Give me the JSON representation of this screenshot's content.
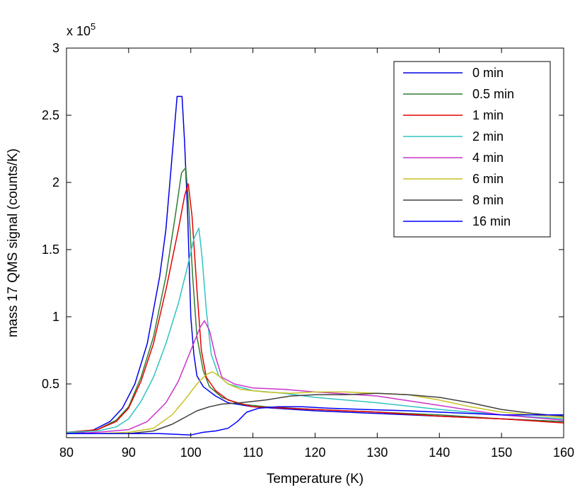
{
  "chart_data": {
    "type": "line",
    "xlabel": "Temperature (K)",
    "ylabel": "mass 17 QMS signal (counts/K)",
    "y_multiplier": {
      "prefix": "x 10",
      "exponent": "5"
    },
    "xlim": [
      80,
      160
    ],
    "ylim": [
      0.1,
      3.0
    ],
    "x_ticks": [
      80,
      90,
      100,
      110,
      120,
      130,
      140,
      150,
      160
    ],
    "y_ticks": [
      0.5,
      1,
      1.5,
      2,
      2.5,
      3
    ],
    "y_tick_labels": [
      "0.5",
      "1",
      "1.5",
      "2",
      "2.5",
      "3"
    ],
    "grid": false,
    "legend_position": "top-right",
    "series": [
      {
        "name": "0 min",
        "color": "#0000e6",
        "points": [
          [
            80,
            0.13
          ],
          [
            84,
            0.15
          ],
          [
            87,
            0.22
          ],
          [
            89,
            0.32
          ],
          [
            91,
            0.5
          ],
          [
            93,
            0.8
          ],
          [
            95,
            1.3
          ],
          [
            96,
            1.65
          ],
          [
            97,
            2.2
          ],
          [
            97.8,
            2.64
          ],
          [
            98.6,
            2.64
          ],
          [
            99,
            2.3
          ],
          [
            99.5,
            1.75
          ],
          [
            100,
            1.0
          ],
          [
            100.5,
            0.72
          ],
          [
            101,
            0.56
          ],
          [
            102,
            0.48
          ],
          [
            104,
            0.41
          ],
          [
            106,
            0.36
          ],
          [
            110,
            0.33
          ],
          [
            120,
            0.3
          ],
          [
            130,
            0.28
          ],
          [
            140,
            0.26
          ],
          [
            150,
            0.24
          ],
          [
            160,
            0.22
          ]
        ]
      },
      {
        "name": "0.5 min",
        "color": "#2e7d32",
        "points": [
          [
            80,
            0.13
          ],
          [
            85,
            0.16
          ],
          [
            88,
            0.23
          ],
          [
            90,
            0.33
          ],
          [
            92,
            0.55
          ],
          [
            94,
            0.85
          ],
          [
            96,
            1.3
          ],
          [
            97.5,
            1.75
          ],
          [
            98.5,
            2.07
          ],
          [
            99.2,
            2.11
          ],
          [
            99.7,
            1.8
          ],
          [
            100.3,
            1.3
          ],
          [
            101,
            0.85
          ],
          [
            102,
            0.6
          ],
          [
            103,
            0.48
          ],
          [
            105,
            0.4
          ],
          [
            108,
            0.35
          ],
          [
            112,
            0.33
          ],
          [
            120,
            0.31
          ],
          [
            130,
            0.29
          ],
          [
            140,
            0.27
          ],
          [
            150,
            0.24
          ],
          [
            160,
            0.22
          ]
        ]
      },
      {
        "name": "1 min",
        "color": "#e60000",
        "points": [
          [
            80,
            0.14
          ],
          [
            85,
            0.16
          ],
          [
            88,
            0.22
          ],
          [
            90,
            0.32
          ],
          [
            92,
            0.52
          ],
          [
            94,
            0.8
          ],
          [
            96,
            1.2
          ],
          [
            98,
            1.65
          ],
          [
            99,
            1.9
          ],
          [
            99.6,
            1.99
          ],
          [
            100.2,
            1.75
          ],
          [
            101,
            1.2
          ],
          [
            101.7,
            0.75
          ],
          [
            102.5,
            0.55
          ],
          [
            104,
            0.45
          ],
          [
            106,
            0.38
          ],
          [
            110,
            0.33
          ],
          [
            120,
            0.31
          ],
          [
            130,
            0.29
          ],
          [
            140,
            0.26
          ],
          [
            150,
            0.24
          ],
          [
            160,
            0.21
          ]
        ]
      },
      {
        "name": "2 min",
        "color": "#30c4c0",
        "points": [
          [
            80,
            0.14
          ],
          [
            85,
            0.15
          ],
          [
            88,
            0.18
          ],
          [
            90,
            0.24
          ],
          [
            92,
            0.37
          ],
          [
            94,
            0.55
          ],
          [
            96,
            0.8
          ],
          [
            98,
            1.1
          ],
          [
            99.5,
            1.38
          ],
          [
            100.5,
            1.58
          ],
          [
            101.3,
            1.66
          ],
          [
            101.8,
            1.45
          ],
          [
            102.5,
            1.05
          ],
          [
            103.3,
            0.72
          ],
          [
            104.5,
            0.56
          ],
          [
            106,
            0.5
          ],
          [
            110,
            0.45
          ],
          [
            115,
            0.43
          ],
          [
            120,
            0.4
          ],
          [
            130,
            0.36
          ],
          [
            140,
            0.31
          ],
          [
            150,
            0.27
          ],
          [
            160,
            0.24
          ]
        ]
      },
      {
        "name": "4 min",
        "color": "#cc33cc",
        "points": [
          [
            80,
            0.13
          ],
          [
            85,
            0.14
          ],
          [
            90,
            0.16
          ],
          [
            93,
            0.22
          ],
          [
            96,
            0.36
          ],
          [
            98,
            0.52
          ],
          [
            100,
            0.75
          ],
          [
            101.5,
            0.92
          ],
          [
            102.2,
            0.97
          ],
          [
            103,
            0.9
          ],
          [
            104,
            0.7
          ],
          [
            105,
            0.55
          ],
          [
            107,
            0.5
          ],
          [
            110,
            0.47
          ],
          [
            115,
            0.46
          ],
          [
            120,
            0.44
          ],
          [
            130,
            0.41
          ],
          [
            140,
            0.34
          ],
          [
            150,
            0.27
          ],
          [
            160,
            0.23
          ]
        ]
      },
      {
        "name": "6 min",
        "color": "#c8c020",
        "points": [
          [
            80,
            0.13
          ],
          [
            85,
            0.13
          ],
          [
            90,
            0.14
          ],
          [
            94,
            0.17
          ],
          [
            97,
            0.27
          ],
          [
            99,
            0.38
          ],
          [
            101,
            0.5
          ],
          [
            102.5,
            0.57
          ],
          [
            103.5,
            0.59
          ],
          [
            104.5,
            0.56
          ],
          [
            106,
            0.5
          ],
          [
            108,
            0.46
          ],
          [
            112,
            0.44
          ],
          [
            116,
            0.43
          ],
          [
            120,
            0.44
          ],
          [
            125,
            0.44
          ],
          [
            130,
            0.43
          ],
          [
            135,
            0.42
          ],
          [
            140,
            0.38
          ],
          [
            145,
            0.33
          ],
          [
            150,
            0.29
          ],
          [
            160,
            0.25
          ]
        ]
      },
      {
        "name": "8 min",
        "color": "#404040",
        "points": [
          [
            80,
            0.13
          ],
          [
            85,
            0.13
          ],
          [
            90,
            0.13
          ],
          [
            94,
            0.15
          ],
          [
            97,
            0.2
          ],
          [
            99,
            0.25
          ],
          [
            101,
            0.3
          ],
          [
            103,
            0.33
          ],
          [
            105,
            0.35
          ],
          [
            108,
            0.36
          ],
          [
            112,
            0.38
          ],
          [
            116,
            0.41
          ],
          [
            120,
            0.42
          ],
          [
            125,
            0.42
          ],
          [
            130,
            0.43
          ],
          [
            135,
            0.42
          ],
          [
            140,
            0.4
          ],
          [
            145,
            0.36
          ],
          [
            150,
            0.31
          ],
          [
            155,
            0.28
          ],
          [
            160,
            0.26
          ]
        ]
      },
      {
        "name": "16 min",
        "color": "#0000ff",
        "points": [
          [
            80,
            0.13
          ],
          [
            85,
            0.13
          ],
          [
            90,
            0.13
          ],
          [
            95,
            0.13
          ],
          [
            100,
            0.12
          ],
          [
            102,
            0.14
          ],
          [
            104,
            0.15
          ],
          [
            106,
            0.17
          ],
          [
            107.5,
            0.22
          ],
          [
            109,
            0.29
          ],
          [
            111,
            0.32
          ],
          [
            114,
            0.33
          ],
          [
            118,
            0.33
          ],
          [
            122,
            0.32
          ],
          [
            128,
            0.31
          ],
          [
            135,
            0.3
          ],
          [
            140,
            0.29
          ],
          [
            145,
            0.28
          ],
          [
            150,
            0.27
          ],
          [
            155,
            0.27
          ],
          [
            160,
            0.27
          ]
        ]
      }
    ]
  }
}
